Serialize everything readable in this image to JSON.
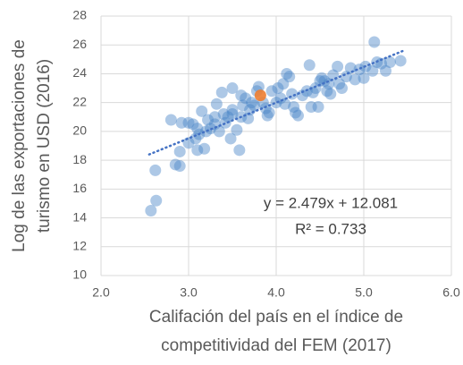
{
  "chart_data": {
    "type": "scatter",
    "xlabel": [
      "Califación del país en el índice de",
      "competitividad del FEM (2017)"
    ],
    "ylabel": [
      "Log de las exportaciones de",
      "turismo en USD (2016)"
    ],
    "xlim": [
      2.0,
      6.0
    ],
    "xticks": [
      {
        "value": 2,
        "label": "2.0"
      },
      {
        "value": 3,
        "label": "3.0"
      },
      {
        "value": 4,
        "label": "4.0"
      },
      {
        "value": 5,
        "label": "5.0"
      },
      {
        "value": 6,
        "label": "6.0"
      }
    ],
    "ylim": [
      10,
      28
    ],
    "yticks": [
      10,
      12,
      14,
      16,
      18,
      20,
      22,
      24,
      26,
      28
    ],
    "grid": true,
    "series": [
      {
        "color": "#4a86c8",
        "x": [
          2.57,
          2.63,
          2.62,
          2.8,
          2.85,
          2.9,
          2.9,
          2.92,
          3.0,
          3.05,
          3.0,
          3.08,
          3.1,
          3.1,
          3.12,
          3.15,
          3.18,
          3.2,
          3.22,
          3.25,
          3.3,
          3.3,
          3.32,
          3.35,
          3.38,
          3.4,
          3.42,
          3.45,
          3.48,
          3.5,
          3.5,
          3.55,
          3.58,
          3.6,
          3.6,
          3.62,
          3.65,
          3.68,
          3.7,
          3.72,
          3.75,
          3.78,
          3.8,
          3.85,
          3.88,
          3.9,
          3.92,
          3.95,
          4.0,
          4.02,
          4.05,
          4.08,
          4.1,
          4.12,
          4.15,
          4.18,
          4.2,
          4.22,
          4.25,
          4.3,
          4.35,
          4.38,
          4.4,
          4.42,
          4.45,
          4.48,
          4.5,
          4.52,
          4.55,
          4.58,
          4.6,
          4.62,
          4.65,
          4.7,
          4.72,
          4.75,
          4.8,
          4.85,
          4.9,
          4.95,
          5.0,
          5.02,
          5.1,
          5.12,
          5.15,
          5.2,
          5.25,
          5.3,
          5.42,
          3.5
        ],
        "values": [
          14.5,
          15.2,
          17.3,
          20.8,
          17.7,
          17.6,
          18.6,
          20.6,
          20.6,
          20.5,
          19.2,
          19.5,
          18.7,
          20.2,
          19.8,
          21.4,
          18.8,
          20.0,
          20.8,
          20.2,
          20.5,
          21.0,
          21.9,
          20.0,
          22.7,
          21.2,
          20.6,
          21.0,
          19.5,
          21.2,
          21.5,
          20.1,
          18.7,
          22.5,
          21.0,
          21.8,
          22.3,
          20.9,
          21.5,
          22.0,
          21.8,
          22.8,
          23.1,
          22.0,
          21.6,
          21.1,
          21.3,
          22.8,
          22.0,
          23.0,
          22.3,
          23.3,
          21.9,
          24.0,
          23.8,
          22.6,
          21.7,
          21.3,
          21.1,
          22.5,
          22.8,
          24.6,
          21.7,
          22.7,
          23.0,
          21.7,
          23.5,
          23.7,
          23.5,
          22.8,
          23.3,
          22.6,
          23.9,
          24.5,
          23.3,
          23.0,
          23.8,
          24.4,
          23.6,
          24.3,
          23.7,
          24.5,
          24.2,
          26.2,
          24.8,
          24.7,
          24.2,
          24.8,
          24.9,
          23.0
        ]
      },
      {
        "color": "#ed7d31",
        "x": [
          3.82
        ],
        "values": [
          22.5
        ]
      }
    ],
    "trendline": {
      "slope": 2.479,
      "intercept": 12.081,
      "xrange": [
        2.55,
        5.45
      ],
      "color": "#4472c4",
      "equation": "y = 2.479x + 12.081",
      "r2": "R² = 0.733"
    }
  }
}
